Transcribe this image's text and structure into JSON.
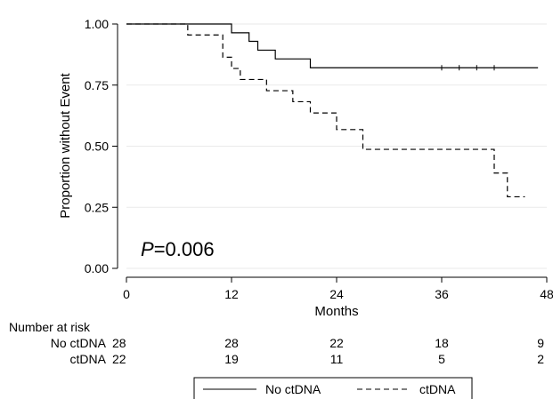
{
  "chart_data": {
    "type": "line",
    "xlabel": "Months",
    "ylabel": "Proportion without Event",
    "xlim": [
      0,
      48
    ],
    "ylim": [
      0,
      1
    ],
    "x_ticks": [
      "0",
      "12",
      "24",
      "36",
      "48"
    ],
    "y_ticks": [
      "0.00",
      "0.25",
      "0.50",
      "0.75",
      "1.00"
    ],
    "grid": "horizontal",
    "legend_position": "bottom",
    "annotation": {
      "italic": "P",
      "text": "=0.006"
    },
    "series": [
      {
        "name": "No ctDNA",
        "style": "solid",
        "steps": [
          [
            0,
            1.0
          ],
          [
            12,
            0.964
          ],
          [
            14,
            0.929
          ],
          [
            15,
            0.893
          ],
          [
            17,
            0.857
          ],
          [
            21,
            0.821
          ],
          [
            47,
            0.821
          ]
        ],
        "censored": [
          36,
          38,
          40,
          42
        ]
      },
      {
        "name": "ctDNA",
        "style": "dashed",
        "steps": [
          [
            0,
            1.0
          ],
          [
            7,
            0.955
          ],
          [
            11,
            0.864
          ],
          [
            12,
            0.818
          ],
          [
            13,
            0.773
          ],
          [
            16,
            0.727
          ],
          [
            19,
            0.682
          ],
          [
            21,
            0.636
          ],
          [
            24,
            0.568
          ],
          [
            27,
            0.487
          ],
          [
            42,
            0.39
          ],
          [
            43.5,
            0.293
          ],
          [
            45.5,
            0.293
          ]
        ],
        "censored": []
      }
    ],
    "risk_table": {
      "title": "Number at risk",
      "rows": [
        {
          "label": "No ctDNA",
          "values": [
            "28",
            "28",
            "22",
            "18",
            "9"
          ]
        },
        {
          "label": "ctDNA",
          "values": [
            "22",
            "19",
            "11",
            "5",
            "2"
          ]
        }
      ]
    }
  },
  "colors": {
    "line": "#000000",
    "axis": "#000000",
    "grid": "#eaeaea"
  }
}
